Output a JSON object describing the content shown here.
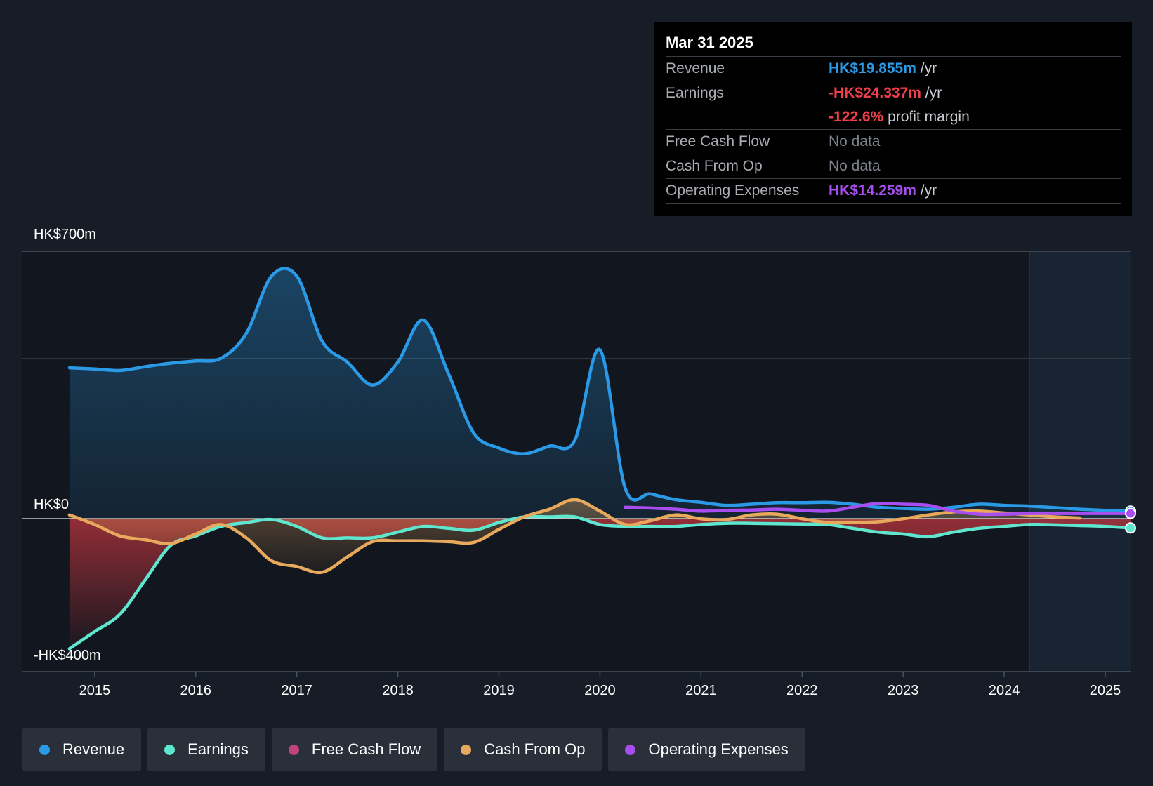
{
  "tooltip": {
    "date": "Mar 31 2025",
    "rows": {
      "revenue": {
        "label": "Revenue",
        "value": "HK$19.855m",
        "unit": "/yr"
      },
      "earnings": {
        "label": "Earnings",
        "value": "-HK$24.337m",
        "unit": "/yr",
        "margin_value": "-122.6%",
        "margin_label": "profit margin"
      },
      "fcf": {
        "label": "Free Cash Flow",
        "value": "No data"
      },
      "cfo": {
        "label": "Cash From Op",
        "value": "No data"
      },
      "opex": {
        "label": "Operating Expenses",
        "value": "HK$14.259m",
        "unit": "/yr"
      }
    }
  },
  "legend": [
    {
      "label": "Revenue",
      "color": "#2a9ae6"
    },
    {
      "label": "Earnings",
      "color": "#5ee6cf"
    },
    {
      "label": "Free Cash Flow",
      "color": "#c2427a"
    },
    {
      "label": "Cash From Op",
      "color": "#e8a95c"
    },
    {
      "label": "Operating Expenses",
      "color": "#a84ef0"
    }
  ],
  "chart_data": {
    "type": "area",
    "y_top_label": "HK$700m",
    "y_zero_label": "HK$0",
    "y_bottom_label": "-HK$400m",
    "ylim": [
      -400,
      700
    ],
    "xlim": [
      2014.73,
      2025.25
    ],
    "x_ticks": [
      "2015",
      "2016",
      "2017",
      "2018",
      "2019",
      "2020",
      "2021",
      "2022",
      "2023",
      "2024",
      "2025"
    ],
    "forecast_start": 2024.25,
    "grid": true,
    "series": [
      {
        "name": "Revenue",
        "color": "#2a9ae6",
        "points": [
          [
            2014.75,
            395
          ],
          [
            2015.0,
            392
          ],
          [
            2015.25,
            388
          ],
          [
            2015.5,
            398
          ],
          [
            2015.75,
            407
          ],
          [
            2016.0,
            413
          ],
          [
            2016.25,
            420
          ],
          [
            2016.5,
            485
          ],
          [
            2016.75,
            635
          ],
          [
            2017.0,
            635
          ],
          [
            2017.25,
            465
          ],
          [
            2017.5,
            410
          ],
          [
            2017.75,
            350
          ],
          [
            2018.0,
            410
          ],
          [
            2018.25,
            520
          ],
          [
            2018.5,
            380
          ],
          [
            2018.75,
            225
          ],
          [
            2019.0,
            185
          ],
          [
            2019.25,
            170
          ],
          [
            2019.5,
            190
          ],
          [
            2019.75,
            205
          ],
          [
            2020.0,
            442
          ],
          [
            2020.25,
            80
          ],
          [
            2020.5,
            65
          ],
          [
            2020.75,
            50
          ],
          [
            2021.0,
            43
          ],
          [
            2021.25,
            35
          ],
          [
            2021.5,
            38
          ],
          [
            2021.75,
            42
          ],
          [
            2022.0,
            42
          ],
          [
            2022.25,
            43
          ],
          [
            2022.5,
            38
          ],
          [
            2022.75,
            30
          ],
          [
            2023.0,
            27
          ],
          [
            2023.25,
            25
          ],
          [
            2023.5,
            30
          ],
          [
            2023.75,
            38
          ],
          [
            2024.0,
            35
          ],
          [
            2024.25,
            33
          ],
          [
            2024.5,
            29
          ],
          [
            2024.75,
            25
          ],
          [
            2025.0,
            22
          ],
          [
            2025.25,
            20
          ]
        ]
      },
      {
        "name": "Earnings",
        "color": "#5ee6cf",
        "points": [
          [
            2014.75,
            -340
          ],
          [
            2015.0,
            -295
          ],
          [
            2015.25,
            -250
          ],
          [
            2015.5,
            -160
          ],
          [
            2015.75,
            -70
          ],
          [
            2016.0,
            -45
          ],
          [
            2016.25,
            -20
          ],
          [
            2016.5,
            -10
          ],
          [
            2016.75,
            -2
          ],
          [
            2017.0,
            -20
          ],
          [
            2017.25,
            -50
          ],
          [
            2017.5,
            -50
          ],
          [
            2017.75,
            -50
          ],
          [
            2018.0,
            -35
          ],
          [
            2018.25,
            -20
          ],
          [
            2018.5,
            -25
          ],
          [
            2018.75,
            -30
          ],
          [
            2019.0,
            -10
          ],
          [
            2019.25,
            5
          ],
          [
            2019.5,
            5
          ],
          [
            2019.75,
            5
          ],
          [
            2020.0,
            -15
          ],
          [
            2020.25,
            -20
          ],
          [
            2020.5,
            -20
          ],
          [
            2020.75,
            -20
          ],
          [
            2021.0,
            -15
          ],
          [
            2021.25,
            -12
          ],
          [
            2021.5,
            -12
          ],
          [
            2021.75,
            -13
          ],
          [
            2022.0,
            -14
          ],
          [
            2022.25,
            -15
          ],
          [
            2022.5,
            -25
          ],
          [
            2022.75,
            -35
          ],
          [
            2023.0,
            -40
          ],
          [
            2023.25,
            -47
          ],
          [
            2023.5,
            -35
          ],
          [
            2023.75,
            -25
          ],
          [
            2024.0,
            -20
          ],
          [
            2024.25,
            -15
          ],
          [
            2024.5,
            -16
          ],
          [
            2024.75,
            -18
          ],
          [
            2025.0,
            -20
          ],
          [
            2025.25,
            -24
          ]
        ]
      },
      {
        "name": "Cash From Op",
        "color": "#e8a95c",
        "points": [
          [
            2014.75,
            10
          ],
          [
            2015.0,
            -15
          ],
          [
            2015.25,
            -45
          ],
          [
            2015.5,
            -55
          ],
          [
            2015.75,
            -65
          ],
          [
            2016.0,
            -40
          ],
          [
            2016.25,
            -15
          ],
          [
            2016.5,
            -50
          ],
          [
            2016.75,
            -110
          ],
          [
            2017.0,
            -125
          ],
          [
            2017.25,
            -140
          ],
          [
            2017.5,
            -100
          ],
          [
            2017.75,
            -60
          ],
          [
            2018.0,
            -58
          ],
          [
            2018.25,
            -58
          ],
          [
            2018.5,
            -60
          ],
          [
            2018.75,
            -62
          ],
          [
            2019.0,
            -28
          ],
          [
            2019.25,
            5
          ],
          [
            2019.5,
            25
          ],
          [
            2019.75,
            50
          ],
          [
            2020.0,
            20
          ],
          [
            2020.25,
            -15
          ],
          [
            2020.5,
            -5
          ],
          [
            2020.75,
            10
          ],
          [
            2021.0,
            0
          ],
          [
            2021.25,
            -2
          ],
          [
            2021.5,
            10
          ],
          [
            2021.75,
            12
          ],
          [
            2022.0,
            0
          ],
          [
            2022.25,
            -10
          ],
          [
            2022.5,
            -10
          ],
          [
            2022.75,
            -8
          ],
          [
            2023.0,
            0
          ],
          [
            2023.25,
            10
          ],
          [
            2023.5,
            18
          ],
          [
            2023.75,
            20
          ],
          [
            2024.0,
            15
          ],
          [
            2024.25,
            10
          ],
          [
            2024.5,
            5
          ],
          [
            2024.75,
            2
          ]
        ]
      },
      {
        "name": "Operating Expenses",
        "color": "#a84ef0",
        "points": [
          [
            2020.25,
            30
          ],
          [
            2020.5,
            28
          ],
          [
            2020.75,
            25
          ],
          [
            2021.0,
            20
          ],
          [
            2021.25,
            22
          ],
          [
            2021.5,
            23
          ],
          [
            2021.75,
            25
          ],
          [
            2022.0,
            22
          ],
          [
            2022.25,
            20
          ],
          [
            2022.5,
            30
          ],
          [
            2022.75,
            40
          ],
          [
            2023.0,
            38
          ],
          [
            2023.25,
            35
          ],
          [
            2023.5,
            20
          ],
          [
            2023.75,
            12
          ],
          [
            2024.0,
            12
          ],
          [
            2024.25,
            14
          ],
          [
            2024.5,
            14
          ],
          [
            2024.75,
            14
          ],
          [
            2025.0,
            14
          ],
          [
            2025.25,
            14
          ]
        ]
      }
    ]
  }
}
